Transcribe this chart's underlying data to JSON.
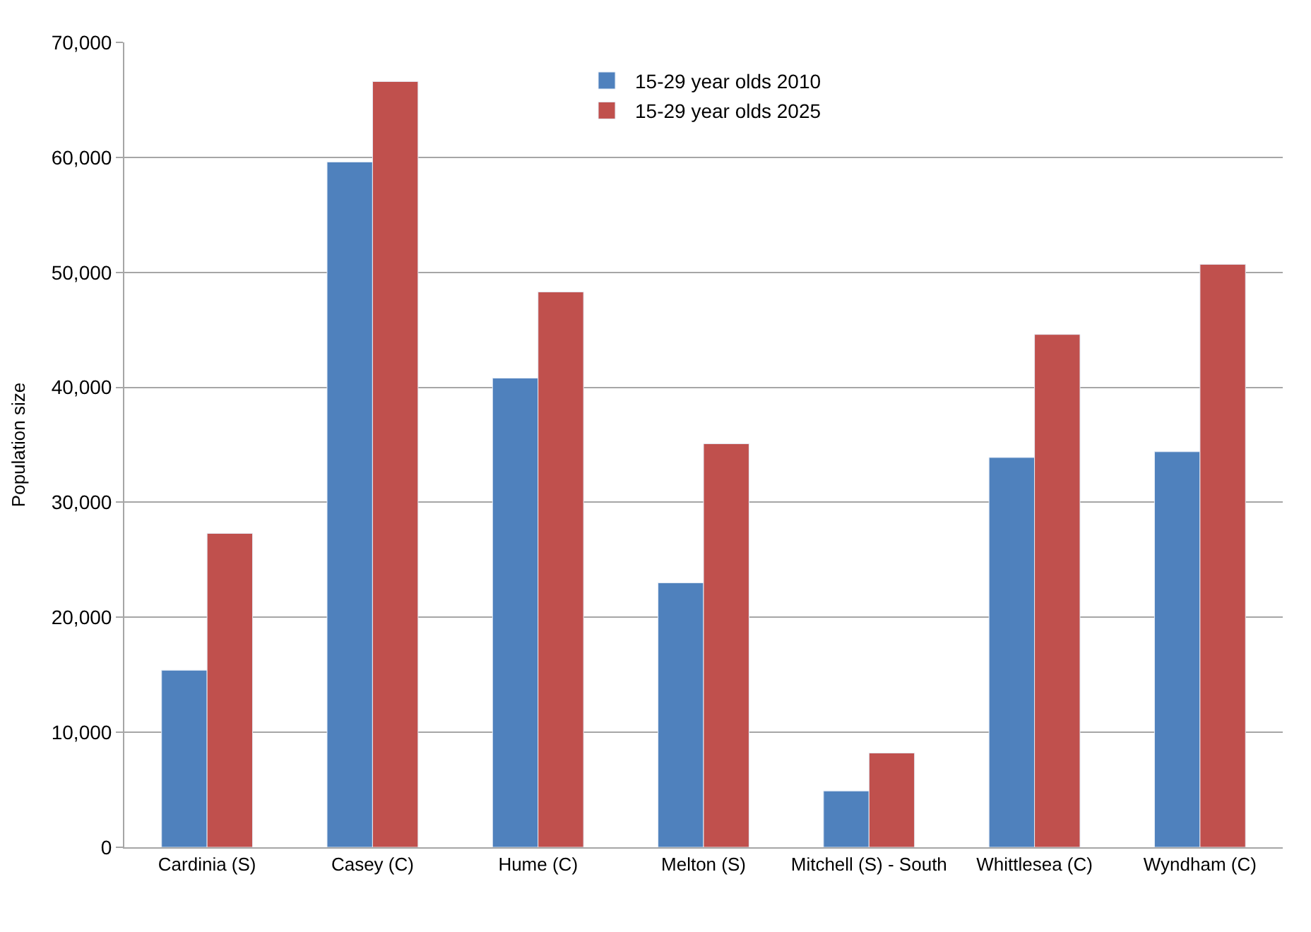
{
  "chart_data": {
    "type": "bar",
    "ylabel": "Population size",
    "categories": [
      "Cardinia (S)",
      "Casey (C)",
      "Hume (C)",
      "Melton (S)",
      "Mitchell (S) - South",
      "Whittlesea (C)",
      "Wyndham (C)"
    ],
    "series": [
      {
        "name": "15-29 year olds 2010",
        "color": "#4f81bd",
        "values": [
          15400,
          59600,
          40800,
          23000,
          4900,
          33900,
          34400
        ]
      },
      {
        "name": "15-29 year olds 2025",
        "color": "#c0504d",
        "values": [
          27300,
          66600,
          48300,
          35100,
          8200,
          44600,
          50700
        ]
      }
    ],
    "ylim": [
      0,
      70000
    ],
    "yticks": [
      {
        "value": 0,
        "label": "0"
      },
      {
        "value": 10000,
        "label": "10,000"
      },
      {
        "value": 20000,
        "label": "20,000"
      },
      {
        "value": 30000,
        "label": "30,000"
      },
      {
        "value": 40000,
        "label": "40,000"
      },
      {
        "value": 50000,
        "label": "50,000"
      },
      {
        "value": 60000,
        "label": "60,000"
      },
      {
        "value": 70000,
        "label": "70,000"
      }
    ],
    "grid": "y",
    "legend": "top"
  }
}
